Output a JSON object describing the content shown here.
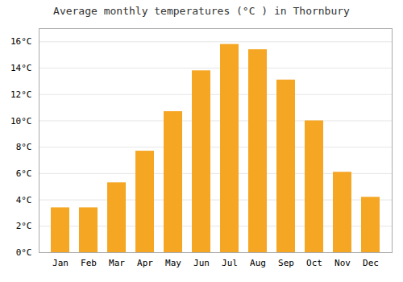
{
  "chart_data": {
    "type": "bar",
    "title": "Average monthly temperatures (°C ) in Thornbury",
    "categories": [
      "Jan",
      "Feb",
      "Mar",
      "Apr",
      "May",
      "Jun",
      "Jul",
      "Aug",
      "Sep",
      "Oct",
      "Nov",
      "Dec"
    ],
    "values": [
      3.4,
      3.4,
      5.3,
      7.7,
      10.7,
      13.8,
      15.8,
      15.4,
      13.1,
      10.0,
      6.1,
      4.2
    ],
    "color": "#F5A623",
    "ylim": [
      0,
      17
    ],
    "yticks": [
      {
        "value": 0,
        "label": "0°C"
      },
      {
        "value": 2,
        "label": "2°C"
      },
      {
        "value": 4,
        "label": "4°C"
      },
      {
        "value": 6,
        "label": "6°C"
      },
      {
        "value": 8,
        "label": "8°C"
      },
      {
        "value": 10,
        "label": "10°C"
      },
      {
        "value": 12,
        "label": "12°C"
      },
      {
        "value": 14,
        "label": "14°C"
      },
      {
        "value": 16,
        "label": "16°C"
      }
    ],
    "grid": true
  }
}
